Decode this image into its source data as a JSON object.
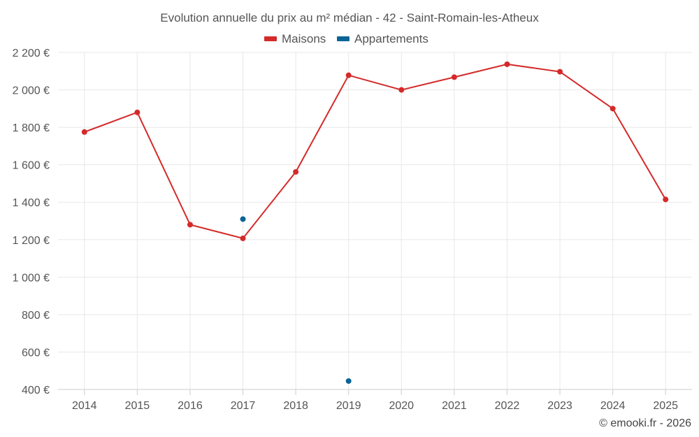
{
  "chart_data": {
    "type": "line",
    "title": "Evolution annuelle du prix au m² médian - 42 - Saint-Romain-les-Atheux",
    "xlabel": "",
    "ylabel": "",
    "categories": [
      "2014",
      "2015",
      "2016",
      "2017",
      "2018",
      "2019",
      "2020",
      "2021",
      "2022",
      "2023",
      "2024",
      "2025"
    ],
    "ylim": [
      400,
      2200
    ],
    "yticks": [
      400,
      600,
      800,
      1000,
      1200,
      1400,
      1600,
      1800,
      2000,
      2200
    ],
    "ytick_labels": [
      "400 €",
      "600 €",
      "800 €",
      "1 000 €",
      "1 200 €",
      "1 400 €",
      "1 600 €",
      "1 800 €",
      "2 000 €",
      "2 200 €"
    ],
    "grid": true,
    "legend_position": "top-center",
    "series": [
      {
        "name": "Maisons",
        "color": "#d42a2a",
        "values": [
          1775,
          1880,
          1280,
          1207,
          1562,
          2078,
          2000,
          2068,
          2137,
          2097,
          1900,
          1415
        ]
      },
      {
        "name": "Appartements",
        "color": "#0a6496",
        "values": [
          null,
          null,
          null,
          1310,
          null,
          445,
          null,
          null,
          null,
          null,
          null,
          null
        ]
      }
    ]
  },
  "credit": "© emooki.fr - 2026"
}
